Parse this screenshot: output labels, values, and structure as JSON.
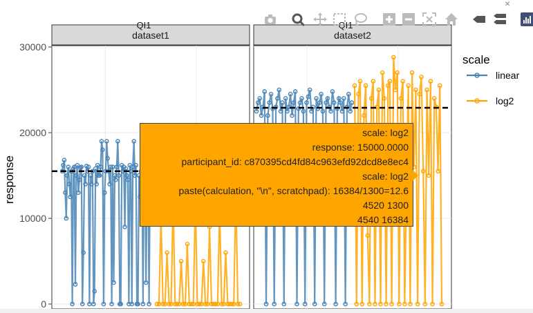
{
  "window": {
    "close_glyph": "×"
  },
  "modebar": {
    "buttons": [
      {
        "name": "camera-icon",
        "title": "Download plot as png"
      },
      {
        "name": "zoom-icon",
        "title": "Zoom"
      },
      {
        "name": "pan-icon",
        "title": "Pan"
      },
      {
        "name": "box-select-icon",
        "title": "Box Select"
      },
      {
        "name": "lasso-select-icon",
        "title": "Lasso Select"
      },
      {
        "name": "zoom-in-icon",
        "title": "Zoom in"
      },
      {
        "name": "zoom-out-icon",
        "title": "Zoom out"
      },
      {
        "name": "autoscale-icon",
        "title": "Autoscale"
      },
      {
        "name": "reset-axes-icon",
        "title": "Reset axes"
      },
      {
        "name": "hover-closest-icon",
        "title": "Show closest data on hover"
      },
      {
        "name": "hover-compare-icon",
        "title": "Compare data on hover"
      },
      {
        "name": "plotly-logo-icon",
        "title": "Produced with Plotly"
      }
    ]
  },
  "legend": {
    "title": "scale",
    "items": [
      {
        "label": "linear",
        "color": "#4682b4"
      },
      {
        "label": "log2",
        "color": "#ffa500"
      }
    ]
  },
  "tooltip": {
    "lines": [
      "scale: log2",
      "response: 15000.0000",
      "participant_id: c870395cd4fd84c963efd92dcd8e8ec4",
      "scale: log2",
      "paste(calculation, \"\\n\", scratchpad): 16384/1300=12.6",
      "4520 1300",
      "4540 16384"
    ],
    "color": "#ffa500"
  },
  "chart_data": {
    "type": "line",
    "ylabel": "response",
    "xlabel": "",
    "ylim": [
      0,
      30000
    ],
    "yticks": [
      0,
      10000,
      20000,
      30000
    ],
    "ytick_labels": [
      "0",
      "10000",
      "20000",
      "30000"
    ],
    "grid": true,
    "legend_placement": "right",
    "series_colors": {
      "linear": "#4682b4",
      "log2": "#ffa500"
    },
    "panels": [
      {
        "strip_label": "dataset1",
        "title": "QI1",
        "reference_line": 15500,
        "series": [
          {
            "name": "linear",
            "values": [
              15500,
              16200,
              16800,
              13000,
              10000,
              15000,
              16000,
              14000,
              12500,
              15500,
              0,
              15800,
              16000,
              2300,
              15000,
              16200,
              13000,
              14500,
              15900,
              16000,
              0,
              6000,
              15000,
              14000,
              16100,
              15500,
              16000,
              0,
              15000,
              14000,
              15500,
              0,
              1500,
              15800,
              14000,
              16200,
              15000,
              15000,
              16000,
              19000,
              18000,
              0,
              13000,
              15500,
              19000,
              17000,
              15500,
              14000,
              16000,
              0,
              16000,
              2500,
              15000,
              14500,
              16000,
              19000,
              15000,
              0,
              0,
              16200,
              15500,
              16000,
              9000,
              15800,
              15000,
              14500,
              0,
              16200,
              15500,
              0,
              16000,
              19000,
              15000,
              16200,
              0,
              0,
              15000,
              12500,
              15500,
              16000,
              0,
              15800,
              16000,
              2500,
              15000,
              16500,
              0,
              15000,
              16000,
              15500
            ]
          },
          {
            "name": "log2",
            "values": [
              0,
              0,
              10000,
              0,
              0,
              6000,
              0,
              0,
              12000,
              0,
              0,
              0,
              5000,
              0,
              0,
              7000,
              0,
              0,
              0,
              12000,
              0,
              0,
              0,
              5000,
              0,
              0,
              9000,
              0,
              0,
              0,
              0,
              11000,
              0,
              0,
              6000,
              0,
              0,
              0,
              0,
              13000,
              0,
              0
            ]
          }
        ]
      },
      {
        "strip_label": "dataset2",
        "title": "QI1",
        "reference_line": 22900,
        "series": [
          {
            "name": "linear",
            "values": [
              22500,
              23500,
              24000,
              22000,
              23000,
              24800,
              0,
              22000,
              23500,
              24500,
              22800,
              0,
              23000,
              24000,
              25000,
              22500,
              23500,
              0,
              24000,
              22500,
              23000,
              24500,
              22000,
              23500,
              24800,
              0,
              22800,
              23500,
              24000,
              22500,
              0,
              23500,
              24200,
              25000,
              22500,
              23000,
              0,
              24000,
              22800,
              23500,
              24500,
              22500,
              0,
              23500,
              24000,
              23000,
              22500,
              24800,
              23500,
              0,
              22800,
              24000,
              23500,
              22500,
              24000,
              0,
              23000,
              24500,
              22500,
              23500
            ]
          },
          {
            "name": "log2",
            "values": [
              25500,
              0,
              24500,
              26000,
              0,
              22000,
              25500,
              8000,
              0,
              24000,
              26000,
              0,
              23000,
              25000,
              0,
              27000,
              24000,
              0,
              25500,
              26000,
              0,
              28800,
              25000,
              27000,
              0,
              24000,
              26000,
              0,
              15000,
              25500,
              0,
              27000,
              16000,
              25000,
              0,
              24500,
              26500,
              15500,
              0,
              25000,
              15000,
              26000,
              0,
              24000,
              23000,
              15500,
              25500,
              0
            ]
          }
        ]
      }
    ]
  }
}
